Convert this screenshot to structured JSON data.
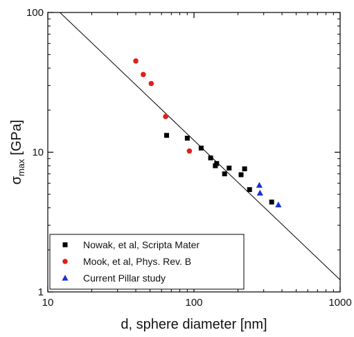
{
  "chart_data": {
    "type": "scatter",
    "xscale": "log",
    "yscale": "log",
    "xlim": [
      10,
      1000
    ],
    "ylim": [
      1,
      100
    ],
    "xticks": [
      10,
      100,
      1000
    ],
    "yticks": [
      1,
      10,
      100
    ],
    "xtick_labels": [
      "10",
      "100",
      "1000"
    ],
    "ytick_labels": [
      "1",
      "10",
      "100"
    ],
    "xlabel": "d, sphere diameter [nm]",
    "ylabel": {
      "symbol": "σ",
      "subscript": "max",
      "unit": "[GPa]"
    },
    "legend_position": "bottom-left",
    "series": [
      {
        "name": "Nowak, et al, Scripta Mater",
        "marker": "square",
        "color": "#000000",
        "points": [
          [
            65,
            13.2
          ],
          [
            90,
            12.6
          ],
          [
            112,
            10.7
          ],
          [
            130,
            9.1
          ],
          [
            140,
            8.0
          ],
          [
            143,
            8.3
          ],
          [
            162,
            7.0
          ],
          [
            174,
            7.7
          ],
          [
            210,
            6.9
          ],
          [
            222,
            7.6
          ],
          [
            240,
            5.4
          ],
          [
            340,
            4.4
          ]
        ]
      },
      {
        "name": "Mook, et al, Phys. Rev. B",
        "marker": "circle",
        "color": "#e0201b",
        "points": [
          [
            40,
            45
          ],
          [
            45,
            36
          ],
          [
            51,
            31
          ],
          [
            64,
            18
          ],
          [
            93,
            10.2
          ]
        ]
      },
      {
        "name": "Current Pillar study",
        "marker": "triangle",
        "color": "#1a33cc",
        "points": [
          [
            280,
            5.8
          ],
          [
            283,
            5.1
          ],
          [
            378,
            4.2
          ]
        ]
      }
    ],
    "fit_line": {
      "points": [
        [
          10,
          121
        ],
        [
          1000,
          1.22
        ]
      ],
      "color": "#000000"
    }
  }
}
